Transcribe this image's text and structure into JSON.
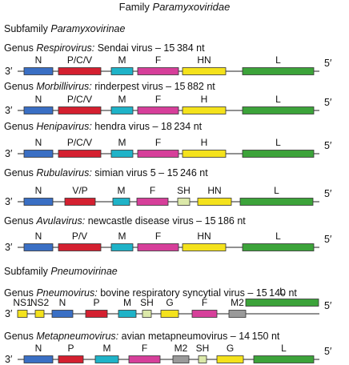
{
  "title": {
    "pre": "Family ",
    "italic": "Paramyxoviridae"
  },
  "end_labels": {
    "left": "3′",
    "right": "5′"
  },
  "colors": {
    "N": "#3a6fc4",
    "P": "#d42030",
    "M": "#1fb3c8",
    "F": "#d63f9a",
    "H": "#f4e21c",
    "L": "#3ca33a",
    "SH": "#dbe8a8",
    "G": "#f4e21c",
    "NS": "#f4e21c",
    "M2": "#9a9a9a"
  },
  "subfamilies": [
    {
      "pre": "Subfamily ",
      "italic": "Paramyxovirinae"
    },
    {
      "pre": "Subfamily ",
      "italic": "Pneumovirinae"
    }
  ],
  "genera": [
    {
      "italic": "Respirovirus:",
      "rest": " Sendai virus – 15 384 nt",
      "genes": [
        {
          "label": "N",
          "color_key": "N"
        },
        {
          "label": "P/C/V",
          "color_key": "P"
        },
        {
          "label": "M",
          "color_key": "M"
        },
        {
          "label": "F",
          "color_key": "F"
        },
        {
          "label": "HN",
          "color_key": "H"
        },
        {
          "label": "L",
          "color_key": "L"
        }
      ]
    },
    {
      "italic": "Morbillivirus:",
      "rest": " rinderpest virus – 15 882 nt",
      "genes": [
        {
          "label": "N",
          "color_key": "N"
        },
        {
          "label": "P/C/V",
          "color_key": "P"
        },
        {
          "label": "M",
          "color_key": "M"
        },
        {
          "label": "F",
          "color_key": "F"
        },
        {
          "label": "H",
          "color_key": "H"
        },
        {
          "label": "L",
          "color_key": "L"
        }
      ]
    },
    {
      "italic": "Henipavirus:",
      "rest": " hendra virus  – 18 234 nt",
      "genes": [
        {
          "label": "N",
          "color_key": "N"
        },
        {
          "label": "P/C/V",
          "color_key": "P"
        },
        {
          "label": "M",
          "color_key": "M"
        },
        {
          "label": "F",
          "color_key": "F"
        },
        {
          "label": "H",
          "color_key": "H"
        },
        {
          "label": "L",
          "color_key": "L"
        }
      ]
    },
    {
      "italic": "Rubulavirus:",
      "rest": " simian virus 5 – 15 246 nt",
      "genes": [
        {
          "label": "N",
          "color_key": "N"
        },
        {
          "label": "V/P",
          "color_key": "P"
        },
        {
          "label": "M",
          "color_key": "M"
        },
        {
          "label": "F",
          "color_key": "F"
        },
        {
          "label": "SH",
          "color_key": "SH"
        },
        {
          "label": "HN",
          "color_key": "H"
        },
        {
          "label": "L",
          "color_key": "L"
        }
      ]
    },
    {
      "italic": "Avulavirus:",
      "rest": " newcastle disease virus – 15 186 nt",
      "genes": [
        {
          "label": "N",
          "color_key": "N"
        },
        {
          "label": "P/V",
          "color_key": "P"
        },
        {
          "label": "M",
          "color_key": "M"
        },
        {
          "label": "F",
          "color_key": "F"
        },
        {
          "label": "HN",
          "color_key": "H"
        },
        {
          "label": "L",
          "color_key": "L"
        }
      ]
    },
    {
      "italic": "Pneumovirus:",
      "rest": " bovine respiratory syncytial virus – 15 140 nt",
      "genes": [
        {
          "label": "NS1",
          "color_key": "NS"
        },
        {
          "label": "NS2",
          "color_key": "NS"
        },
        {
          "label": "N",
          "color_key": "N"
        },
        {
          "label": "P",
          "color_key": "P"
        },
        {
          "label": "M",
          "color_key": "M"
        },
        {
          "label": "SH",
          "color_key": "SH"
        },
        {
          "label": "G",
          "color_key": "G"
        },
        {
          "label": "F",
          "color_key": "F"
        },
        {
          "label": "M2",
          "color_key": "M2"
        },
        {
          "label": "L",
          "color_key": "L"
        }
      ]
    },
    {
      "italic": "Metapneumovirus:",
      "rest": " avian metapneumovirus  – 14 150 nt",
      "genes": [
        {
          "label": "N",
          "color_key": "N"
        },
        {
          "label": "P",
          "color_key": "P"
        },
        {
          "label": "M",
          "color_key": "M"
        },
        {
          "label": "F",
          "color_key": "F"
        },
        {
          "label": "M2",
          "color_key": "M2"
        },
        {
          "label": "SH",
          "color_key": "SH"
        },
        {
          "label": "G",
          "color_key": "G"
        },
        {
          "label": "L",
          "color_key": "L"
        }
      ]
    }
  ],
  "genus_prefix": "Genus "
}
